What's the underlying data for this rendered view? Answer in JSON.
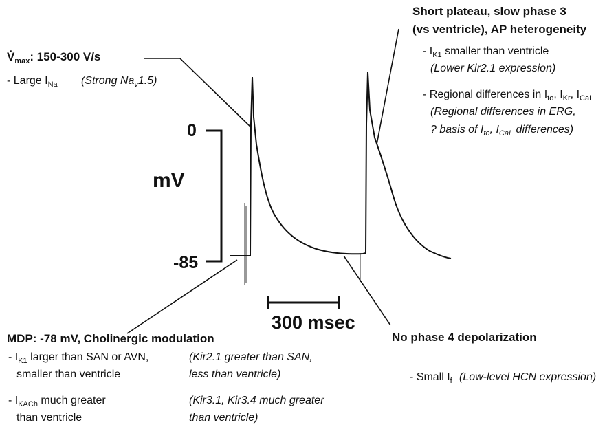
{
  "axis": {
    "zero": "0",
    "bottom": "-85",
    "unit": "mV",
    "scale_bar": "300 msec"
  },
  "vmax": {
    "heading": [
      "V̇",
      {
        "sub": "max"
      },
      ": 150-300 V/s"
    ],
    "line": [
      "- Large I",
      {
        "sub": "Na"
      }
    ],
    "note": [
      "(Strong Na",
      {
        "sub": "v"
      },
      "1.5)"
    ]
  },
  "plateau": {
    "heading": [
      [
        "Short plateau, slow phase 3"
      ],
      [
        "(vs ventricle), AP heterogeneity"
      ]
    ],
    "lines": [
      [
        "- I",
        {
          "sub": "K1"
        },
        " smaller than ventricle"
      ],
      [
        "(Lower Kir2.1 expression)"
      ],
      [
        "- Regional differences in I",
        {
          "sub": "to"
        },
        ", I",
        {
          "sub": "Kr"
        },
        ", I",
        {
          "sub": "CaL"
        }
      ],
      [
        "(Regional differences in ERG,"
      ],
      [
        "? basis of I",
        {
          "sub": "to"
        },
        ", I",
        {
          "sub": "CaL"
        },
        " differences)"
      ]
    ]
  },
  "mdp": {
    "heading": [
      "MDP: -78 mV, Cholinergic modulation"
    ],
    "lines": [
      [
        "- I",
        {
          "sub": "K1"
        },
        " larger than SAN or AVN,"
      ],
      [
        "smaller than ventricle"
      ],
      [
        "- I",
        {
          "sub": "KACh"
        },
        " much greater"
      ],
      [
        "than ventricle"
      ]
    ],
    "notes": [
      [
        "(Kir2.1 greater than SAN,"
      ],
      [
        "less than ventricle)"
      ],
      [
        "(Kir3.1, Kir3.4 much greater"
      ],
      [
        "than ventricle)"
      ]
    ]
  },
  "phase4": {
    "heading": [
      "No phase 4 depolarization"
    ],
    "line": [
      "- Small I",
      {
        "sub": "f"
      }
    ],
    "note": [
      "(Low-level HCN expression)"
    ]
  }
}
